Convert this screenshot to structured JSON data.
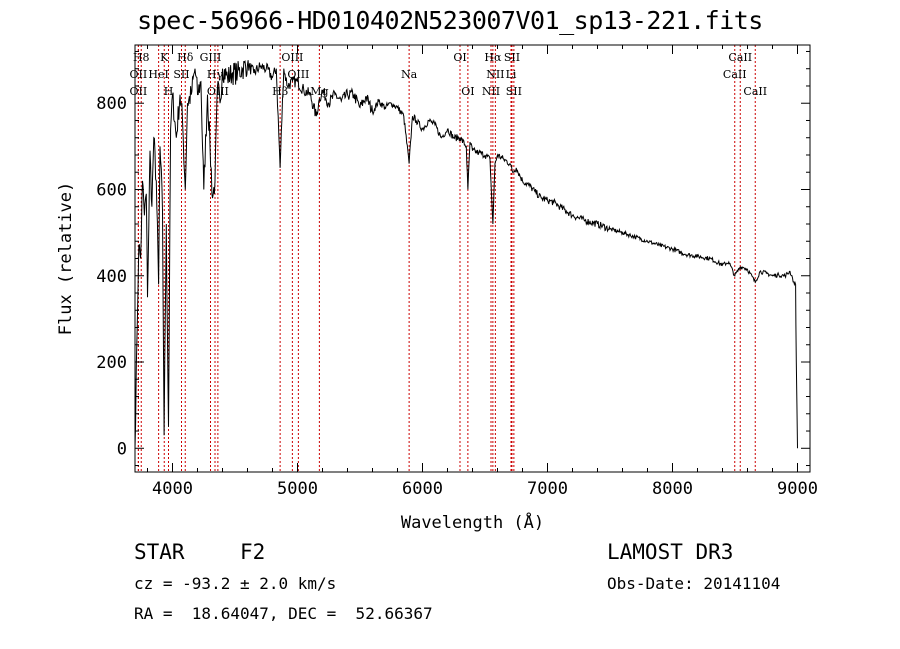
{
  "chart_data": {
    "type": "line",
    "title": "spec-56966-HD010402N523007V01_sp13-221.fits",
    "xlabel": "Wavelength (Å)",
    "ylabel": "Flux (relative)",
    "xlim": [
      3700,
      9100
    ],
    "ylim": [
      -55,
      935
    ],
    "x_ticks": [
      4000,
      5000,
      6000,
      7000,
      8000,
      9000
    ],
    "y_ticks": [
      0,
      200,
      400,
      600,
      800
    ],
    "series": [
      {
        "name": "flux",
        "x": [
          3700,
          3715,
          3730,
          3745,
          3760,
          3775,
          3790,
          3800,
          3820,
          3835,
          3850,
          3870,
          3889,
          3900,
          3920,
          3933,
          3950,
          3968,
          3985,
          4000,
          4030,
          4060,
          4080,
          4102,
          4120,
          4150,
          4180,
          4200,
          4227,
          4250,
          4280,
          4300,
          4320,
          4340,
          4360,
          4380,
          4400,
          4440,
          4480,
          4520,
          4560,
          4600,
          4650,
          4700,
          4750,
          4800,
          4830,
          4861,
          4890,
          4920,
          4960,
          5000,
          5050,
          5100,
          5150,
          5175,
          5200,
          5250,
          5300,
          5350,
          5400,
          5450,
          5500,
          5550,
          5600,
          5650,
          5700,
          5750,
          5800,
          5850,
          5893,
          5920,
          5950,
          6000,
          6050,
          6100,
          6150,
          6200,
          6250,
          6300,
          6350,
          6363,
          6380,
          6400,
          6450,
          6500,
          6540,
          6563,
          6580,
          6600,
          6650,
          6700,
          6720,
          6750,
          6800,
          6850,
          6900,
          6950,
          7000,
          7050,
          7100,
          7150,
          7200,
          7300,
          7400,
          7500,
          7600,
          7700,
          7800,
          7900,
          8000,
          8100,
          8200,
          8300,
          8400,
          8450,
          8498,
          8542,
          8560,
          8600,
          8662,
          8700,
          8750,
          8800,
          8850,
          8900,
          8940,
          8960,
          8975,
          8985,
          8990,
          9000
        ],
        "y": [
          0,
          250,
          470,
          440,
          620,
          540,
          590,
          350,
          690,
          560,
          720,
          620,
          380,
          700,
          550,
          30,
          520,
          50,
          740,
          820,
          720,
          820,
          760,
          600,
          800,
          820,
          880,
          820,
          850,
          600,
          820,
          700,
          580,
          620,
          840,
          800,
          880,
          860,
          870,
          870,
          880,
          890,
          870,
          885,
          880,
          860,
          880,
          650,
          880,
          840,
          850,
          850,
          830,
          820,
          770,
          810,
          830,
          800,
          820,
          805,
          820,
          820,
          790,
          815,
          780,
          805,
          790,
          800,
          790,
          770,
          660,
          770,
          760,
          740,
          760,
          750,
          720,
          740,
          720,
          720,
          700,
          600,
          710,
          690,
          685,
          680,
          670,
          520,
          660,
          680,
          670,
          660,
          640,
          650,
          620,
          610,
          595,
          580,
          575,
          570,
          560,
          550,
          540,
          528,
          520,
          508,
          500,
          490,
          480,
          470,
          462,
          450,
          445,
          440,
          425,
          432,
          400,
          420,
          420,
          415,
          385,
          410,
          406,
          400,
          402,
          400,
          410,
          395,
          380,
          380,
          200,
          0
        ],
        "color": "#000000"
      }
    ],
    "line_markers": [
      {
        "label": "H8",
        "wavelength": 3750,
        "row": 1
      },
      {
        "label": "OII",
        "wavelength": 3727,
        "row": 2
      },
      {
        "label": "OII",
        "wavelength": 3727,
        "row": 3
      },
      {
        "label": "K",
        "wavelength": 3934,
        "row": 1
      },
      {
        "label": "H",
        "wavelength": 3968,
        "row": 3
      },
      {
        "label": "HeI",
        "wavelength": 3889,
        "row": 2
      },
      {
        "label": "SII",
        "wavelength": 4072,
        "row": 2
      },
      {
        "label": "Hδ",
        "wavelength": 4102,
        "row": 1
      },
      {
        "label": "GIII",
        "wavelength": 4304,
        "row": 1
      },
      {
        "label": "Hγ",
        "wavelength": 4340,
        "row": 2
      },
      {
        "label": "OIII",
        "wavelength": 4363,
        "row": 3
      },
      {
        "label": "OIII",
        "wavelength": 4959,
        "row": 1
      },
      {
        "label": "OIII",
        "wavelength": 5007,
        "row": 2
      },
      {
        "label": "Hβ",
        "wavelength": 4861,
        "row": 3
      },
      {
        "label": "Mg",
        "wavelength": 5175,
        "row": 3
      },
      {
        "label": "Na",
        "wavelength": 5893,
        "row": 2
      },
      {
        "label": "OI",
        "wavelength": 6300,
        "row": 1
      },
      {
        "label": "OI",
        "wavelength": 6363,
        "row": 3
      },
      {
        "label": "Hα",
        "wavelength": 6563,
        "row": 1
      },
      {
        "label": "NII",
        "wavelength": 6583,
        "row": 2
      },
      {
        "label": "NII",
        "wavelength": 6548,
        "row": 3
      },
      {
        "label": "SII",
        "wavelength": 6716,
        "row": 1
      },
      {
        "label": "Li",
        "wavelength": 6708,
        "row": 2
      },
      {
        "label": "SII",
        "wavelength": 6731,
        "row": 3
      },
      {
        "label": "CaII",
        "wavelength": 8542,
        "row": 1
      },
      {
        "label": "CaII",
        "wavelength": 8498,
        "row": 2
      },
      {
        "label": "CaII",
        "wavelength": 8662,
        "row": 3
      }
    ],
    "marker_color": "#cc0000"
  },
  "info": {
    "object_type": "STAR",
    "subclass": "F2",
    "survey": "LAMOST DR3",
    "cz": "cz = -93.2 ± 2.0 km/s",
    "obs_date": "Obs-Date: 20141104",
    "coords": "RA =  18.64047, DEC =  52.66367"
  }
}
